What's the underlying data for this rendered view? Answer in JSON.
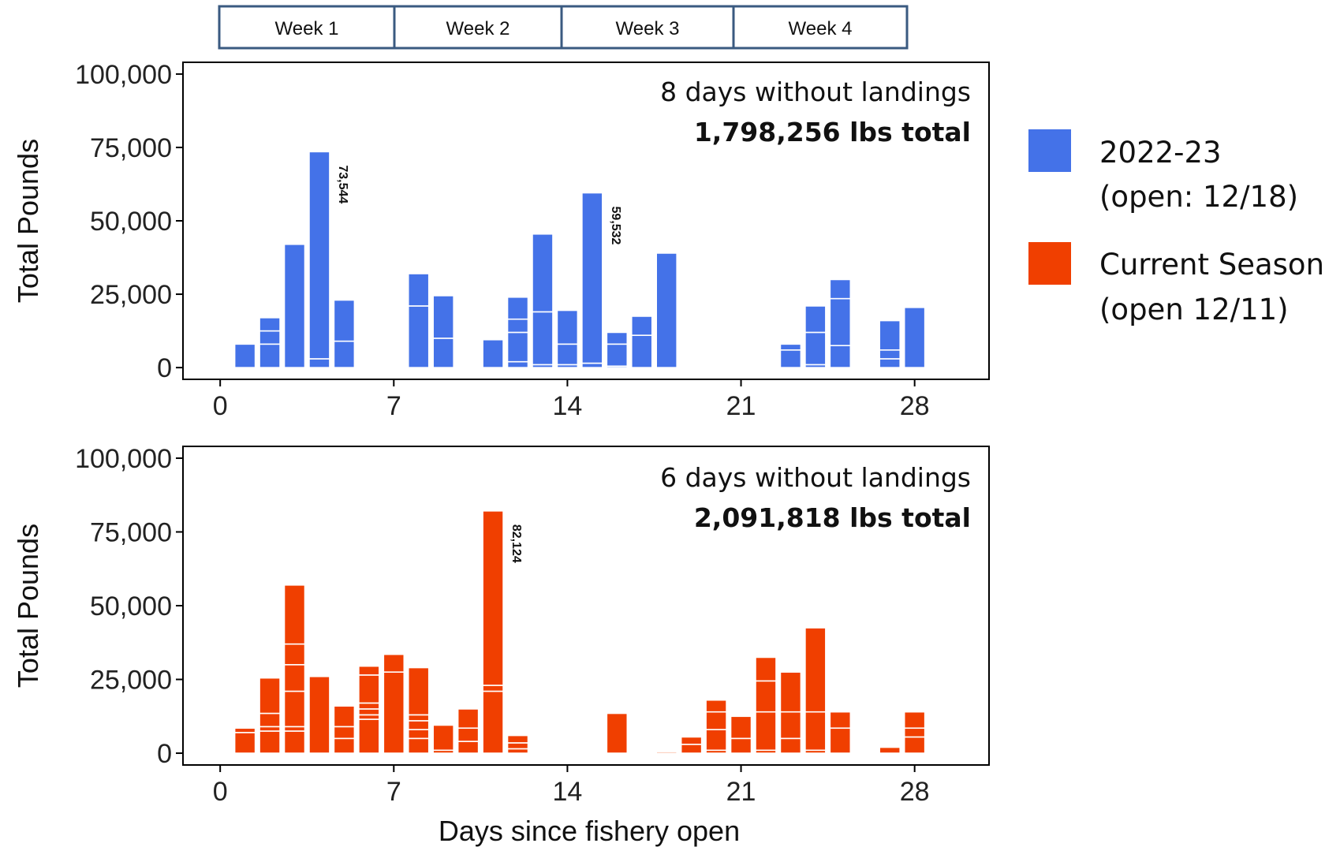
{
  "weeks": [
    "Week 1",
    "Week 2",
    "Week 3",
    "Week 4"
  ],
  "legend": {
    "items": [
      {
        "line1": "2022-23",
        "line2": "(open: 12/18)",
        "color": "#4472e8"
      },
      {
        "line1": "Current Season",
        "line2": "(open 12/11)",
        "color": "#f03f00"
      }
    ]
  },
  "xlabel": "Days since fishery open",
  "chart_data": [
    {
      "type": "bar",
      "stacked": true,
      "series_name": "2022-23",
      "color": "#4472e8",
      "ylabel": "Total Pounds",
      "xlim": [
        -1.5,
        31
      ],
      "ylim": [
        -4000,
        104000
      ],
      "x_ticks": [
        0,
        7,
        14,
        21,
        28
      ],
      "x_tick_labels": [
        "0",
        "7",
        "14",
        "21",
        "28"
      ],
      "y_ticks": [
        0,
        25000,
        50000,
        75000,
        100000
      ],
      "y_tick_labels": [
        "0",
        "25,000",
        "50,000",
        "75,000",
        "100,000"
      ],
      "annotation_line1": "8 days without landings",
      "annotation_line2": "1,798,256 lbs total",
      "bars": [
        {
          "day": 1,
          "segments": [
            8000
          ]
        },
        {
          "day": 2,
          "segments": [
            8000,
            4500,
            4500
          ]
        },
        {
          "day": 3,
          "segments": [
            42000
          ]
        },
        {
          "day": 4,
          "segments": [
            3000,
            70544
          ],
          "label": "73,544"
        },
        {
          "day": 5,
          "segments": [
            9000,
            14000
          ]
        },
        {
          "day": 8,
          "segments": [
            21000,
            11000
          ]
        },
        {
          "day": 9,
          "segments": [
            10000,
            14500
          ]
        },
        {
          "day": 11,
          "segments": [
            9500
          ]
        },
        {
          "day": 12,
          "segments": [
            2000,
            10000,
            4500,
            7500
          ]
        },
        {
          "day": 13,
          "segments": [
            1000,
            18000,
            26500
          ]
        },
        {
          "day": 14,
          "segments": [
            1000,
            7000,
            11500
          ]
        },
        {
          "day": 15,
          "segments": [
            1500,
            58032
          ],
          "label": "59,532"
        },
        {
          "day": 16,
          "segments": [
            500,
            7500,
            4000
          ]
        },
        {
          "day": 17,
          "segments": [
            11000,
            6500
          ]
        },
        {
          "day": 18,
          "segments": [
            39000
          ]
        },
        {
          "day": 23,
          "segments": [
            6000,
            2000
          ]
        },
        {
          "day": 24,
          "segments": [
            1000,
            11000,
            9000
          ]
        },
        {
          "day": 25,
          "segments": [
            7500,
            16000,
            6500
          ]
        },
        {
          "day": 27,
          "segments": [
            3000,
            3000,
            10000
          ]
        },
        {
          "day": 28,
          "segments": [
            20500
          ]
        }
      ]
    },
    {
      "type": "bar",
      "stacked": true,
      "series_name": "Current Season",
      "color": "#f03f00",
      "ylabel": "Total Pounds",
      "xlim": [
        -1.5,
        31
      ],
      "ylim": [
        -4000,
        104000
      ],
      "x_ticks": [
        0,
        7,
        14,
        21,
        28
      ],
      "x_tick_labels": [
        "0",
        "7",
        "14",
        "21",
        "28"
      ],
      "y_ticks": [
        0,
        25000,
        50000,
        75000,
        100000
      ],
      "y_tick_labels": [
        "0",
        "25,000",
        "50,000",
        "75,000",
        "100,000"
      ],
      "annotation_line1": "6 days without landings",
      "annotation_line2": "2,091,818 lbs total",
      "bars": [
        {
          "day": 1,
          "segments": [
            7000,
            1500
          ]
        },
        {
          "day": 2,
          "segments": [
            7500,
            1500,
            4500,
            12000
          ]
        },
        {
          "day": 3,
          "segments": [
            7500,
            1500,
            12000,
            9000,
            7000,
            20000
          ]
        },
        {
          "day": 4,
          "segments": [
            26000
          ]
        },
        {
          "day": 5,
          "segments": [
            5000,
            4000,
            7000
          ]
        },
        {
          "day": 6,
          "segments": [
            11500,
            1500,
            2000,
            2000,
            9500,
            3000
          ]
        },
        {
          "day": 7,
          "segments": [
            27500,
            6000
          ]
        },
        {
          "day": 8,
          "segments": [
            5000,
            3000,
            3000,
            2000,
            16000
          ]
        },
        {
          "day": 9,
          "segments": [
            1000,
            8500
          ]
        },
        {
          "day": 10,
          "segments": [
            4000,
            4500,
            6500
          ]
        },
        {
          "day": 11,
          "segments": [
            21000,
            2000,
            59124
          ],
          "label": "82,124"
        },
        {
          "day": 12,
          "segments": [
            1500,
            2000,
            2500
          ]
        },
        {
          "day": 16,
          "segments": [
            13500
          ]
        },
        {
          "day": 18,
          "segments": [
            500
          ]
        },
        {
          "day": 19,
          "segments": [
            3000,
            2500
          ]
        },
        {
          "day": 20,
          "segments": [
            1000,
            7000,
            6000,
            4000
          ]
        },
        {
          "day": 21,
          "segments": [
            5000,
            7500
          ]
        },
        {
          "day": 22,
          "segments": [
            1000,
            13000,
            10500,
            8000
          ]
        },
        {
          "day": 23,
          "segments": [
            5000,
            9000,
            13500
          ]
        },
        {
          "day": 24,
          "segments": [
            1000,
            13000,
            28500
          ]
        },
        {
          "day": 25,
          "segments": [
            8500,
            5500
          ]
        },
        {
          "day": 27,
          "segments": [
            2000
          ]
        },
        {
          "day": 28,
          "segments": [
            5500,
            3000,
            5500
          ]
        }
      ]
    }
  ]
}
